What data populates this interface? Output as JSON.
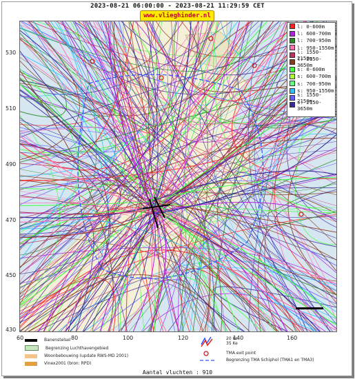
{
  "header": {
    "title": "2023-08-21 06:00:00 - 2023-08-21 11:29:59 CET",
    "site": "www.vlieghinder.nl"
  },
  "axes": {
    "y_ticks": [
      "530",
      "510",
      "490",
      "470",
      "450",
      "430"
    ],
    "x_ticks": [
      "60",
      "80",
      "100",
      "120",
      "140",
      "160"
    ]
  },
  "legend": {
    "items": [
      {
        "label": "l: 0-600m",
        "color": "#ff2020"
      },
      {
        "label": "l: 600-700m",
        "color": "#b020e0"
      },
      {
        "label": "l: 700-950m",
        "color": "#2a8a2a"
      },
      {
        "label": "l: 950-1550m",
        "color": "#ff70b0"
      },
      {
        "label": "l: 1550-2150m",
        "color": "#c03060"
      },
      {
        "label": "l: 2150-3650m",
        "color": "#8b3a1a"
      },
      {
        "label": "s: 0-600m",
        "color": "#40ff40"
      },
      {
        "label": "s: 600-700m",
        "color": "#b0ff30"
      },
      {
        "label": "s: 700-950m",
        "color": "#60ff80"
      },
      {
        "label": "s: 950-1550m",
        "color": "#30c0ff"
      },
      {
        "label": "s: 1550-2150m",
        "color": "#6060ff"
      },
      {
        "label": "s: 2150-3650m",
        "color": "#3a2aa0"
      }
    ]
  },
  "footer": {
    "runway": "Banenstelsel",
    "boundary": "Begrenzing Luchthavengebied",
    "housing": "Woonbebouwing (update RWS-MD 2001)",
    "vinex": "Vinex2001 (bron: RPD)",
    "ke_20": "20 Ke",
    "ke_35": "35 Ke",
    "tma_exit": "TMA exit point",
    "tma_boundary": "Begrenzing TMA Schiphol  (TMA1 en TMA3)",
    "count": "Aantal vluchten : 910"
  }
}
